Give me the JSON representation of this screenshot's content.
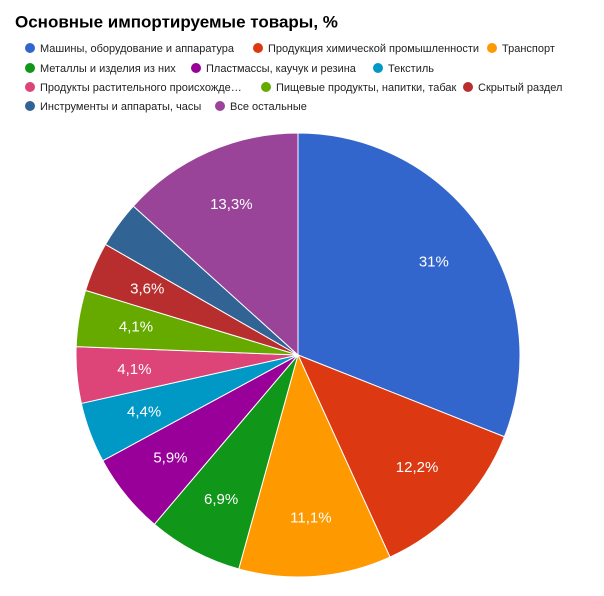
{
  "chart_data": {
    "type": "pie",
    "title": "Основные импортируемые товары, %",
    "categories": [
      "Машины, оборудование и аппаратура",
      "Продукция химической промышленности",
      "Транспорт",
      "Металлы и изделия из них",
      "Пластмассы, каучук и резина",
      "Текстиль",
      "Продукты растительного происхожде…",
      "Пищевые продукты, напитки, табак",
      "Скрытый раздел",
      "Инструменты и аппараты, часы",
      "Все остальные"
    ],
    "values": [
      31,
      12.2,
      11.1,
      6.9,
      5.9,
      4.4,
      4.1,
      4.1,
      3.6,
      3.4,
      13.3
    ],
    "value_labels": [
      "31%",
      "12,2%",
      "11,1%",
      "6,9%",
      "5,9%",
      "4,4%",
      "4,1%",
      "4,1%",
      "3,6%",
      null,
      "13,3%"
    ],
    "colors": [
      "#3366cc",
      "#dc3912",
      "#ff9900",
      "#109618",
      "#990099",
      "#0099c6",
      "#dd4477",
      "#66aa00",
      "#b82e2e",
      "#316395",
      "#994499"
    ],
    "legend": "top"
  }
}
